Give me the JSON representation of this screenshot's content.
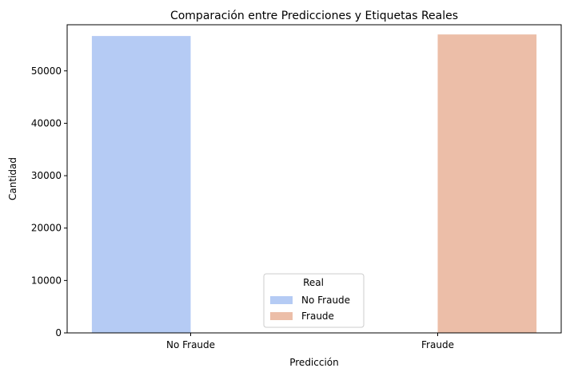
{
  "chart_data": {
    "type": "bar",
    "title": "Comparación entre Predicciones y Etiquetas Reales",
    "xlabel": "Predicción",
    "ylabel": "Cantidad",
    "categories": [
      "No Fraude",
      "Fraude"
    ],
    "series": [
      {
        "name": "No Fraude",
        "color": "#b5cbf4",
        "values": [
          56650,
          60
        ]
      },
      {
        "name": "Fraude",
        "color": "#ecbea8",
        "values": [
          60,
          56950
        ]
      }
    ],
    "ylim": [
      0,
      58800
    ],
    "yticks": [
      0,
      10000,
      20000,
      30000,
      40000,
      50000
    ],
    "ytick_labels": [
      "0",
      "10000",
      "20000",
      "30000",
      "40000",
      "50000"
    ],
    "grid": false,
    "legend": {
      "title": "Real",
      "placement": "bottom-center",
      "entries": [
        "No Fraude",
        "Fraude"
      ]
    }
  }
}
